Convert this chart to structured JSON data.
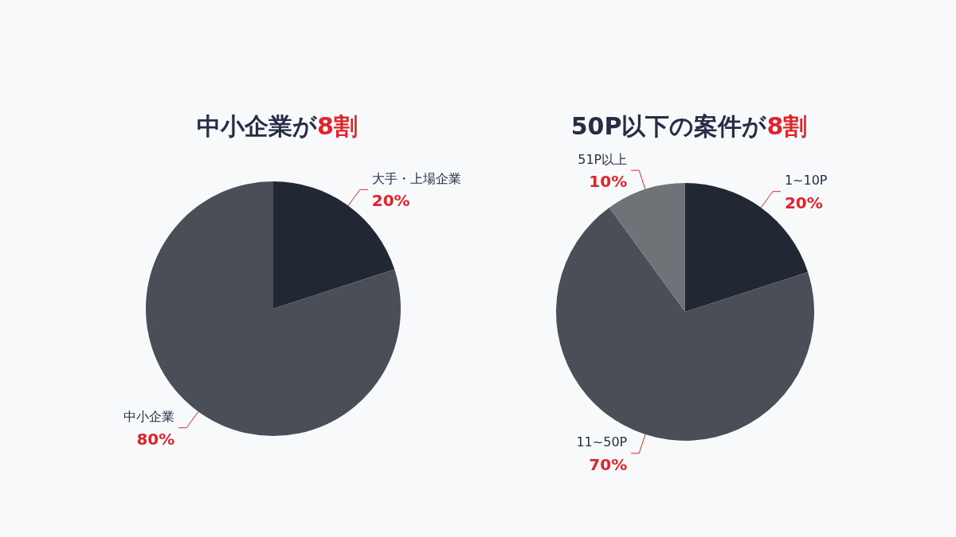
{
  "chart_data": [
    {
      "type": "pie",
      "title": "中小企業が8割",
      "categories": [
        "大手・上場企業",
        "中小企業"
      ],
      "values": [
        20,
        80
      ],
      "colors": [
        "#212833",
        "#4a4f57"
      ],
      "value_labels": [
        "20%",
        "80%"
      ],
      "legend": false
    },
    {
      "type": "pie",
      "title": "50P以下の案件が8割",
      "categories": [
        "1~10P",
        "11~50P",
        "51P以上"
      ],
      "values": [
        20,
        70,
        10
      ],
      "colors": [
        "#212833",
        "#4a4f57",
        "#6f7277"
      ],
      "value_labels": [
        "20%",
        "70%",
        "10%"
      ],
      "legend": false
    }
  ]
}
